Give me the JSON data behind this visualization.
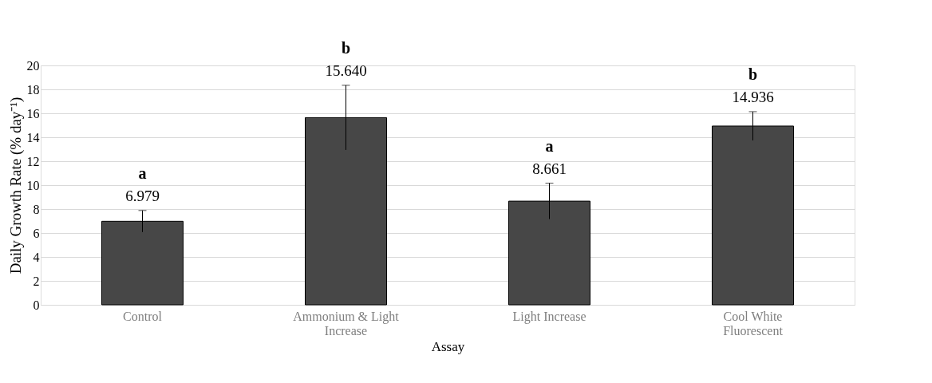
{
  "chart_data": {
    "type": "bar",
    "xlabel": "Assay",
    "ylabel": "Daily Growth Rate (% day⁻¹)",
    "categories": [
      "Control",
      "Ammonium & Light Increase",
      "Light Increase",
      "Cool White Fluorescent"
    ],
    "values": [
      6.979,
      15.64,
      8.661,
      14.936
    ],
    "value_labels": [
      "6.979",
      "15.640",
      "8.661",
      "14.936"
    ],
    "errors": [
      0.9,
      2.7,
      1.5,
      1.2
    ],
    "color": "#474747",
    "ylim": [
      0,
      20
    ],
    "yticks": [
      0,
      2,
      4,
      6,
      8,
      10,
      12,
      14,
      16,
      18,
      20
    ],
    "grid": "y",
    "annotations": [
      "a",
      "b",
      "a",
      "b"
    ]
  }
}
